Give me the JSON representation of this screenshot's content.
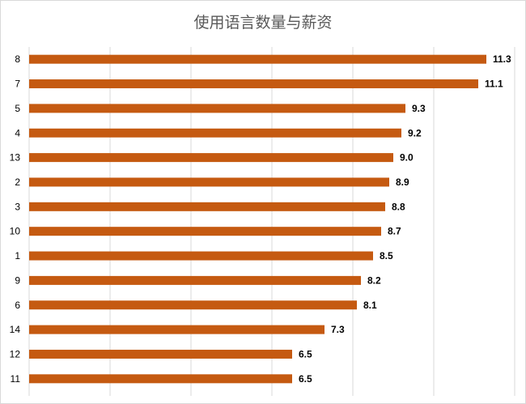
{
  "chart_data": {
    "type": "bar",
    "orientation": "horizontal",
    "title": "使用语言数量与薪资",
    "categories": [
      "8",
      "7",
      "5",
      "4",
      "13",
      "2",
      "3",
      "10",
      "1",
      "9",
      "6",
      "14",
      "12",
      "11"
    ],
    "values": [
      11.3,
      11.1,
      9.3,
      9.2,
      9.0,
      8.9,
      8.8,
      8.7,
      8.5,
      8.2,
      8.1,
      7.3,
      6.5,
      6.5
    ],
    "data_labels": [
      "11.3",
      "11.1",
      "9.3",
      "9.2",
      "9.0",
      "8.9",
      "8.8",
      "8.7",
      "8.5",
      "8.2",
      "8.1",
      "7.3",
      "6.5",
      "6.5"
    ],
    "xlabel": "",
    "ylabel": "",
    "xlim": [
      0,
      12
    ],
    "x_gridline_step": 2,
    "x_tick_labels_shown": false,
    "grid": true,
    "legend": "none",
    "bar_color": "#C55A11",
    "grid_color": "#D9D9D9"
  }
}
